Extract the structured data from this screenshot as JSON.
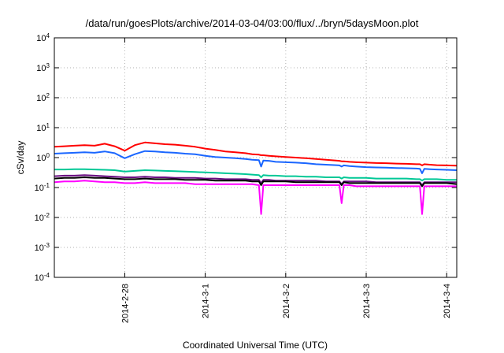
{
  "chart_data": {
    "type": "line",
    "title": "/data/run/goesPlots/archive/2014-03-04/03:00/flux/../bryn/5daysMoon.plot",
    "xlabel": "Coordinated Universal Time (UTC)",
    "ylabel": "cSv/day",
    "x_scale": "time",
    "y_scale": "log",
    "xlim": [
      "2014-02-27T03:00",
      "2014-03-04T03:00"
    ],
    "ylim": [
      0.0001,
      10000
    ],
    "grid": true,
    "x_ticks": [
      {
        "x": "2014-02-28T00:00",
        "label": "2014-2-28"
      },
      {
        "x": "2014-03-01T00:00",
        "label": "2014-3-1"
      },
      {
        "x": "2014-03-02T00:00",
        "label": "2014-3-2"
      },
      {
        "x": "2014-03-03T00:00",
        "label": "2014-3-3"
      },
      {
        "x": "2014-03-04T00:00",
        "label": "2014-3-4"
      }
    ],
    "y_ticks": [
      {
        "y": 0.0001,
        "base": "10",
        "exp": "-4"
      },
      {
        "y": 0.001,
        "base": "10",
        "exp": "-3"
      },
      {
        "y": 0.01,
        "base": "10",
        "exp": "-2"
      },
      {
        "y": 0.1,
        "base": "10",
        "exp": "-1"
      },
      {
        "y": 1,
        "base": "10",
        "exp": "0"
      },
      {
        "y": 10,
        "base": "10",
        "exp": "1"
      },
      {
        "y": 100,
        "base": "10",
        "exp": "2"
      },
      {
        "y": 1000,
        "base": "10",
        "exp": "3"
      },
      {
        "y": 10000,
        "base": "10",
        "exp": "4"
      }
    ],
    "x": [
      "2014-02-27T03:00",
      "2014-02-27T06:00",
      "2014-02-27T09:00",
      "2014-02-27T12:00",
      "2014-02-27T15:00",
      "2014-02-27T18:00",
      "2014-02-27T21:00",
      "2014-02-28T00:00",
      "2014-02-28T03:00",
      "2014-02-28T06:00",
      "2014-02-28T09:00",
      "2014-02-28T12:00",
      "2014-02-28T15:00",
      "2014-02-28T18:00",
      "2014-02-28T21:00",
      "2014-03-01T00:00",
      "2014-03-01T03:00",
      "2014-03-01T06:00",
      "2014-03-01T09:00",
      "2014-03-01T12:00",
      "2014-03-01T14:00",
      "2014-03-01T16:00",
      "2014-03-01T16:40",
      "2014-03-01T17:20",
      "2014-03-01T19:00",
      "2014-03-01T21:00",
      "2014-03-02T00:00",
      "2014-03-02T03:00",
      "2014-03-02T06:00",
      "2014-03-02T09:00",
      "2014-03-02T12:00",
      "2014-03-02T15:00",
      "2014-03-02T16:00",
      "2014-03-02T16:40",
      "2014-03-02T17:20",
      "2014-03-02T19:00",
      "2014-03-02T21:00",
      "2014-03-03T00:00",
      "2014-03-03T03:00",
      "2014-03-03T06:00",
      "2014-03-03T09:00",
      "2014-03-03T12:00",
      "2014-03-03T15:00",
      "2014-03-03T16:00",
      "2014-03-03T16:40",
      "2014-03-03T17:20",
      "2014-03-03T19:00",
      "2014-03-03T21:00",
      "2014-03-04T00:00",
      "2014-03-04T03:00"
    ],
    "series": [
      {
        "color": "#ff0000",
        "values": [
          2.3,
          2.4,
          2.5,
          2.6,
          2.5,
          2.9,
          2.4,
          1.7,
          2.6,
          3.2,
          3.0,
          2.8,
          2.7,
          2.5,
          2.3,
          2.0,
          1.8,
          1.6,
          1.5,
          1.4,
          1.3,
          1.25,
          1.2,
          1.2,
          1.15,
          1.1,
          1.05,
          1.0,
          0.95,
          0.9,
          0.85,
          0.8,
          0.78,
          0.75,
          0.75,
          0.72,
          0.7,
          0.68,
          0.66,
          0.65,
          0.63,
          0.62,
          0.6,
          0.6,
          0.55,
          0.6,
          0.58,
          0.56,
          0.55,
          0.54
        ]
      },
      {
        "color": "#1a66ff",
        "values": [
          1.35,
          1.4,
          1.45,
          1.5,
          1.45,
          1.6,
          1.4,
          0.95,
          1.3,
          1.65,
          1.6,
          1.5,
          1.45,
          1.35,
          1.3,
          1.15,
          1.05,
          1.0,
          0.95,
          0.9,
          0.85,
          0.82,
          0.5,
          0.8,
          0.78,
          0.72,
          0.7,
          0.68,
          0.65,
          0.6,
          0.58,
          0.56,
          0.55,
          0.5,
          0.55,
          0.52,
          0.5,
          0.48,
          0.47,
          0.46,
          0.45,
          0.44,
          0.43,
          0.42,
          0.3,
          0.42,
          0.41,
          0.4,
          0.39,
          0.38
        ]
      },
      {
        "color": "#00c896",
        "values": [
          0.4,
          0.4,
          0.41,
          0.41,
          0.4,
          0.39,
          0.38,
          0.34,
          0.36,
          0.38,
          0.37,
          0.36,
          0.35,
          0.34,
          0.33,
          0.32,
          0.31,
          0.3,
          0.29,
          0.28,
          0.27,
          0.26,
          0.22,
          0.26,
          0.25,
          0.25,
          0.24,
          0.24,
          0.23,
          0.23,
          0.22,
          0.22,
          0.22,
          0.2,
          0.22,
          0.21,
          0.21,
          0.21,
          0.2,
          0.2,
          0.2,
          0.2,
          0.19,
          0.19,
          0.17,
          0.19,
          0.19,
          0.19,
          0.18,
          0.18
        ]
      },
      {
        "color": "#6a0d83",
        "values": [
          0.24,
          0.25,
          0.25,
          0.26,
          0.25,
          0.24,
          0.23,
          0.22,
          0.22,
          0.23,
          0.22,
          0.22,
          0.21,
          0.21,
          0.21,
          0.2,
          0.2,
          0.19,
          0.19,
          0.19,
          0.18,
          0.18,
          0.14,
          0.18,
          0.18,
          0.17,
          0.17,
          0.17,
          0.17,
          0.17,
          0.16,
          0.16,
          0.16,
          0.13,
          0.16,
          0.16,
          0.16,
          0.16,
          0.15,
          0.15,
          0.15,
          0.15,
          0.15,
          0.15,
          0.12,
          0.15,
          0.15,
          0.15,
          0.15,
          0.15
        ]
      },
      {
        "color": "#000000",
        "values": [
          0.2,
          0.21,
          0.21,
          0.22,
          0.21,
          0.21,
          0.2,
          0.19,
          0.19,
          0.2,
          0.19,
          0.19,
          0.19,
          0.18,
          0.18,
          0.18,
          0.17,
          0.17,
          0.17,
          0.17,
          0.16,
          0.16,
          0.12,
          0.16,
          0.16,
          0.16,
          0.16,
          0.15,
          0.15,
          0.15,
          0.15,
          0.15,
          0.15,
          0.12,
          0.15,
          0.14,
          0.14,
          0.14,
          0.14,
          0.14,
          0.14,
          0.14,
          0.14,
          0.14,
          0.11,
          0.14,
          0.14,
          0.14,
          0.14,
          0.13
        ]
      },
      {
        "color": "#ff00ff",
        "values": [
          0.15,
          0.16,
          0.16,
          0.17,
          0.16,
          0.15,
          0.15,
          0.14,
          0.14,
          0.15,
          0.14,
          0.14,
          0.14,
          0.14,
          0.13,
          0.13,
          0.13,
          0.13,
          0.13,
          0.13,
          0.13,
          0.12,
          0.013,
          0.12,
          0.12,
          0.12,
          0.12,
          0.12,
          0.12,
          0.12,
          0.12,
          0.12,
          0.12,
          0.03,
          0.12,
          0.12,
          0.11,
          0.11,
          0.11,
          0.11,
          0.11,
          0.11,
          0.11,
          0.11,
          0.013,
          0.11,
          0.11,
          0.11,
          0.11,
          0.11
        ]
      }
    ]
  }
}
